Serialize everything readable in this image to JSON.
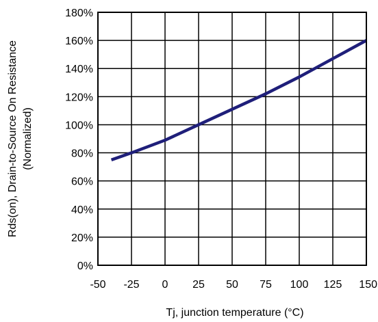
{
  "chart_data": {
    "type": "line",
    "title": "",
    "xlabel": "Tj, junction temperature (°C)",
    "ylabel_lines": [
      "Rds(on), Drain-to-Source On Resistance",
      "(Normalized)"
    ],
    "xlim": [
      -50,
      150
    ],
    "ylim": [
      0,
      180
    ],
    "x_ticks": [
      -50,
      -25,
      0,
      25,
      50,
      75,
      100,
      125,
      150
    ],
    "x_tick_labels": [
      "-50",
      "-25",
      "0",
      "25",
      "50",
      "75",
      "100",
      "125",
      "150"
    ],
    "y_ticks": [
      0,
      20,
      40,
      60,
      80,
      100,
      120,
      140,
      160,
      180
    ],
    "y_tick_labels": [
      "0%",
      "20%",
      "40%",
      "60%",
      "80%",
      "100%",
      "120%",
      "140%",
      "160%",
      "180%"
    ],
    "grid": true,
    "series": [
      {
        "color": "#1f1f7a",
        "x": [
          -40,
          -25,
          0,
          25,
          50,
          75,
          100,
          125,
          150
        ],
        "y": [
          75,
          80,
          89,
          100,
          111,
          122,
          134,
          147,
          160
        ]
      }
    ]
  }
}
